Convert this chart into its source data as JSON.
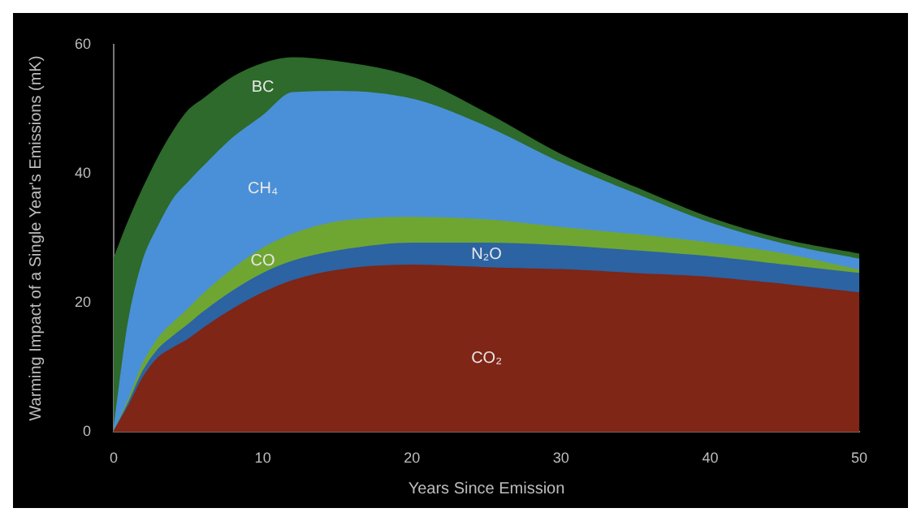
{
  "chart_data": {
    "type": "area",
    "stacked": true,
    "xlabel": "Years Since Emission",
    "ylabel": "Warming Impact of a Single Year's Emissions (mK)",
    "x": [
      0,
      1,
      2,
      3,
      4,
      5,
      6,
      8,
      10,
      12,
      15,
      20,
      25,
      30,
      35,
      40,
      45,
      50
    ],
    "series": [
      {
        "name": "CO₂",
        "color": "#7f2616",
        "values": [
          0,
          4,
          8.5,
          11.5,
          13,
          14.3,
          16,
          19,
          21.5,
          23.4,
          25,
          25.8,
          25.4,
          25.1,
          24.5,
          23.9,
          22.8,
          21.5
        ]
      },
      {
        "name": "N₂O",
        "color": "#2c63a3",
        "values": [
          0,
          0.5,
          1,
          1.3,
          1.8,
          2.3,
          2.5,
          2.8,
          3,
          3,
          3,
          3.4,
          3.8,
          3.7,
          3.5,
          3.2,
          3,
          3
        ]
      },
      {
        "name": "CO",
        "color": "#6fa632",
        "values": [
          0,
          0.5,
          1.2,
          1.7,
          2.1,
          2.4,
          2.8,
          3.4,
          3.9,
          4.2,
          4.5,
          4,
          3.6,
          2.8,
          2.5,
          2.1,
          1.7,
          0.5
        ]
      },
      {
        "name": "CH₄",
        "color": "#4a90d8",
        "values": [
          0,
          12,
          16,
          17.3,
          19.1,
          19.6,
          19.7,
          20.3,
          20.5,
          21.9,
          20.2,
          18.3,
          14.4,
          10,
          6.3,
          3.1,
          1.5,
          1.7
        ]
      },
      {
        "name": "BC",
        "color": "#2d6a2b",
        "values": [
          26.7,
          15.6,
          11.1,
          10.7,
          10.5,
          11.1,
          10.5,
          9.4,
          8.1,
          5.4,
          4.6,
          3.4,
          2.1,
          1.3,
          1,
          0.8,
          0.7,
          0.8
        ]
      }
    ],
    "xlim": [
      0,
      50
    ],
    "xticks": [
      0,
      10,
      20,
      30,
      40,
      50
    ],
    "ylim": [
      0,
      60
    ],
    "yticks": [
      0,
      20,
      40,
      60
    ],
    "grid": false,
    "legend": false,
    "marker": "none"
  }
}
